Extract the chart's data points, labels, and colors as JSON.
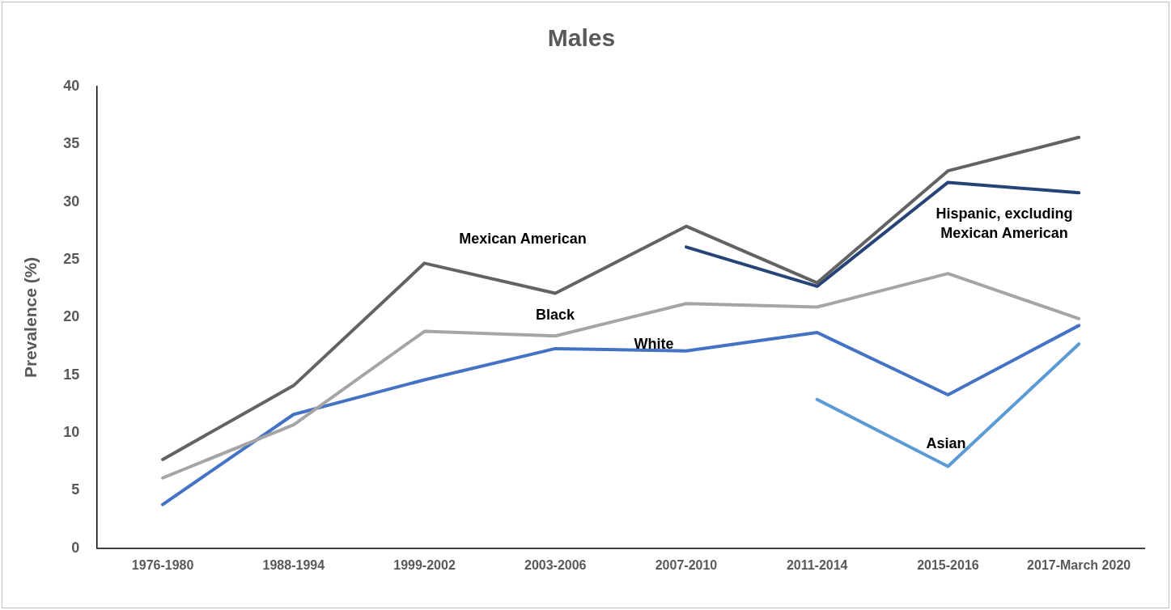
{
  "chart_data": {
    "type": "line",
    "title": "Males",
    "ylabel": "Prevalence (%)",
    "categories": [
      "1976-1980",
      "1988-1994",
      "1999-2002",
      "2003-2006",
      "2007-2010",
      "2011-2014",
      "2015-2016",
      "2017-March 2020"
    ],
    "series": [
      {
        "name": "Mexican American",
        "color": "#636363",
        "values": [
          7.7,
          14.1,
          24.7,
          22.1,
          27.9,
          23.0,
          32.7,
          35.6
        ]
      },
      {
        "name": "Black",
        "color": "#a5a5a5",
        "values": [
          6.1,
          10.7,
          18.8,
          18.4,
          21.2,
          20.9,
          23.8,
          19.9
        ]
      },
      {
        "name": "White",
        "color": "#4472c4",
        "values": [
          3.8,
          11.6,
          14.6,
          17.3,
          17.1,
          18.7,
          13.3,
          19.3
        ]
      },
      {
        "name": "Hispanic, excluding Mexican American",
        "color": "#264478",
        "values": [
          null,
          null,
          null,
          null,
          26.1,
          22.7,
          31.7,
          30.8
        ]
      },
      {
        "name": "Asian",
        "color": "#5b9bd5",
        "values": [
          null,
          null,
          null,
          null,
          null,
          12.9,
          7.1,
          17.7
        ]
      }
    ],
    "ylim": [
      0,
      40
    ],
    "yticks": [
      0,
      5,
      10,
      15,
      20,
      25,
      30,
      35,
      40
    ],
    "grid": false,
    "legend": false,
    "marker": "none",
    "line_style": "solid"
  }
}
